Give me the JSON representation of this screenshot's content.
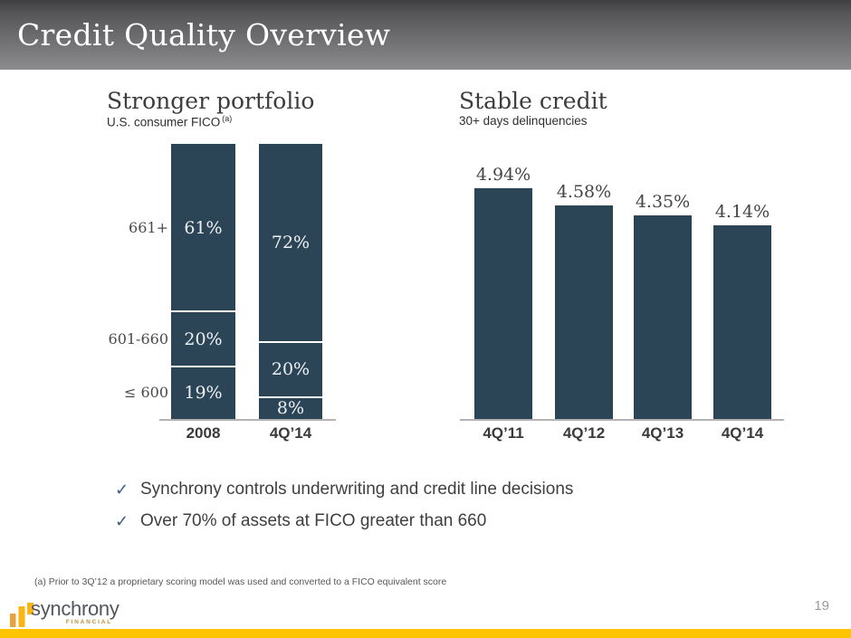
{
  "colors": {
    "bar_navy": "#2b4557",
    "gold_bar": "#fcc500",
    "check": "#3d5f85",
    "logo_gold_dark": "#e8a33d",
    "logo_gold": "#fdb515",
    "baseline_gray": "#b3b3b3"
  },
  "header": {
    "title": "Credit Quality Overview"
  },
  "chart_data": [
    {
      "type": "bar",
      "subtype": "stacked-100",
      "title": "Stronger portfolio",
      "subtitle": "U.S. consumer FICO",
      "subtitle_marker": "(a)",
      "categories": [
        "2008",
        "4Q’14"
      ],
      "row_labels": [
        "661+",
        "601-660",
        "≤ 600"
      ],
      "series": [
        {
          "name": "661+",
          "values": [
            61,
            72
          ]
        },
        {
          "name": "601-660",
          "values": [
            20,
            20
          ]
        },
        {
          "name": "≤ 600",
          "values": [
            19,
            8
          ]
        }
      ],
      "value_labels": [
        [
          "61%",
          "20%",
          "19%"
        ],
        [
          "72%",
          "20%",
          "8%"
        ]
      ],
      "unit": "%",
      "total": 100,
      "legend_position": "left",
      "grid": false
    },
    {
      "type": "bar",
      "title": "Stable credit",
      "subtitle": "30+ days delinquencies",
      "categories": [
        "4Q’11",
        "4Q’12",
        "4Q’13",
        "4Q’14"
      ],
      "values": [
        4.94,
        4.58,
        4.35,
        4.14
      ],
      "value_labels": [
        "4.94%",
        "4.58%",
        "4.35%",
        "4.14%"
      ],
      "unit": "%",
      "ylim": [
        0,
        5.9
      ],
      "grid": false
    }
  ],
  "bullets": [
    "Synchrony controls underwriting and credit line decisions",
    "Over 70% of assets at FICO greater than 660"
  ],
  "footnote": "(a)  Prior to 3Q’12 a proprietary scoring model was used and converted to a FICO equivalent score",
  "footer": {
    "logo_text": "synchrony",
    "logo_subtext": "FINANCIAL",
    "page_number": "19"
  }
}
